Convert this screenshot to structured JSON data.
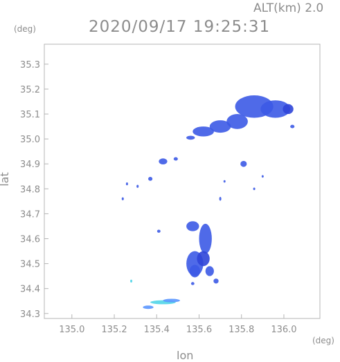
{
  "header": {
    "altitude_label": "ALT(km) 2.0",
    "timestamp": "2020/09/17 19:25:31",
    "y_unit": "(deg)",
    "x_unit": "(deg)"
  },
  "chart_data": {
    "type": "heatmap",
    "xlabel": "lon",
    "ylabel": "lat",
    "xlim": [
      134.87,
      136.17
    ],
    "ylim": [
      34.28,
      35.38
    ],
    "x_ticks": [
      "135.0",
      "135.2",
      "135.4",
      "135.6",
      "135.8",
      "136.0"
    ],
    "y_ticks": [
      "34.3",
      "34.4",
      "34.5",
      "34.6",
      "34.7",
      "34.8",
      "34.9",
      "35.0",
      "35.1",
      "35.2",
      "35.3"
    ],
    "grid": false,
    "colors": {
      "main_echo": "#3c5ae6",
      "strong_echo": "#2f45d8",
      "weak_echo": "#5a96ff",
      "light_echo": "#46d2e6",
      "axis": "#b4b4b4"
    },
    "echo_cells": [
      {
        "lon": 135.86,
        "lat": 35.13,
        "rlon": 0.09,
        "rlat": 0.045,
        "level": "main"
      },
      {
        "lon": 135.96,
        "lat": 35.12,
        "rlon": 0.07,
        "rlat": 0.035,
        "level": "main"
      },
      {
        "lon": 136.02,
        "lat": 35.12,
        "rlon": 0.025,
        "rlat": 0.02,
        "level": "strong"
      },
      {
        "lon": 135.78,
        "lat": 35.07,
        "rlon": 0.05,
        "rlat": 0.03,
        "level": "main"
      },
      {
        "lon": 135.7,
        "lat": 35.05,
        "rlon": 0.05,
        "rlat": 0.025,
        "level": "main"
      },
      {
        "lon": 135.62,
        "lat": 35.03,
        "rlon": 0.05,
        "rlat": 0.02,
        "level": "main"
      },
      {
        "lon": 135.56,
        "lat": 35.005,
        "rlon": 0.02,
        "rlat": 0.008,
        "level": "main"
      },
      {
        "lon": 136.04,
        "lat": 35.05,
        "rlon": 0.01,
        "rlat": 0.007,
        "level": "main"
      },
      {
        "lon": 135.43,
        "lat": 34.91,
        "rlon": 0.02,
        "rlat": 0.012,
        "level": "main"
      },
      {
        "lon": 135.49,
        "lat": 34.92,
        "rlon": 0.01,
        "rlat": 0.007,
        "level": "main"
      },
      {
        "lon": 135.81,
        "lat": 34.9,
        "rlon": 0.015,
        "rlat": 0.012,
        "level": "main"
      },
      {
        "lon": 135.37,
        "lat": 34.84,
        "rlon": 0.01,
        "rlat": 0.008,
        "level": "main"
      },
      {
        "lon": 135.57,
        "lat": 34.65,
        "rlon": 0.03,
        "rlat": 0.02,
        "level": "main"
      },
      {
        "lon": 135.63,
        "lat": 34.6,
        "rlon": 0.03,
        "rlat": 0.06,
        "level": "main"
      },
      {
        "lon": 135.58,
        "lat": 34.5,
        "rlon": 0.04,
        "rlat": 0.05,
        "level": "main"
      },
      {
        "lon": 135.62,
        "lat": 34.52,
        "rlon": 0.03,
        "rlat": 0.03,
        "level": "strong"
      },
      {
        "lon": 135.58,
        "lat": 34.47,
        "rlon": 0.025,
        "rlat": 0.025,
        "level": "main"
      },
      {
        "lon": 135.65,
        "lat": 34.47,
        "rlon": 0.02,
        "rlat": 0.02,
        "level": "main"
      },
      {
        "lon": 135.68,
        "lat": 34.43,
        "rlon": 0.012,
        "rlat": 0.01,
        "level": "main"
      },
      {
        "lon": 135.57,
        "lat": 34.42,
        "rlon": 0.008,
        "rlat": 0.006,
        "level": "main"
      },
      {
        "lon": 135.43,
        "lat": 34.345,
        "rlon": 0.06,
        "rlat": 0.008,
        "level": "light"
      },
      {
        "lon": 135.36,
        "lat": 34.325,
        "rlon": 0.025,
        "rlat": 0.007,
        "level": "weak"
      },
      {
        "lon": 135.47,
        "lat": 34.352,
        "rlon": 0.04,
        "rlat": 0.007,
        "level": "weak"
      },
      {
        "lon": 135.28,
        "lat": 34.43,
        "rlon": 0.005,
        "rlat": 0.006,
        "level": "light"
      },
      {
        "lon": 135.41,
        "lat": 34.63,
        "rlon": 0.008,
        "rlat": 0.006,
        "level": "main"
      },
      {
        "lon": 135.24,
        "lat": 34.76,
        "rlon": 0.005,
        "rlat": 0.006,
        "level": "main"
      },
      {
        "lon": 135.31,
        "lat": 34.81,
        "rlon": 0.005,
        "rlat": 0.006,
        "level": "main"
      },
      {
        "lon": 135.26,
        "lat": 34.82,
        "rlon": 0.004,
        "rlat": 0.006,
        "level": "main"
      },
      {
        "lon": 135.7,
        "lat": 34.76,
        "rlon": 0.005,
        "rlat": 0.008,
        "level": "main"
      },
      {
        "lon": 135.86,
        "lat": 34.8,
        "rlon": 0.005,
        "rlat": 0.005,
        "level": "main"
      },
      {
        "lon": 135.9,
        "lat": 34.85,
        "rlon": 0.004,
        "rlat": 0.005,
        "level": "main"
      },
      {
        "lon": 135.72,
        "lat": 34.83,
        "rlon": 0.004,
        "rlat": 0.005,
        "level": "main"
      }
    ]
  }
}
